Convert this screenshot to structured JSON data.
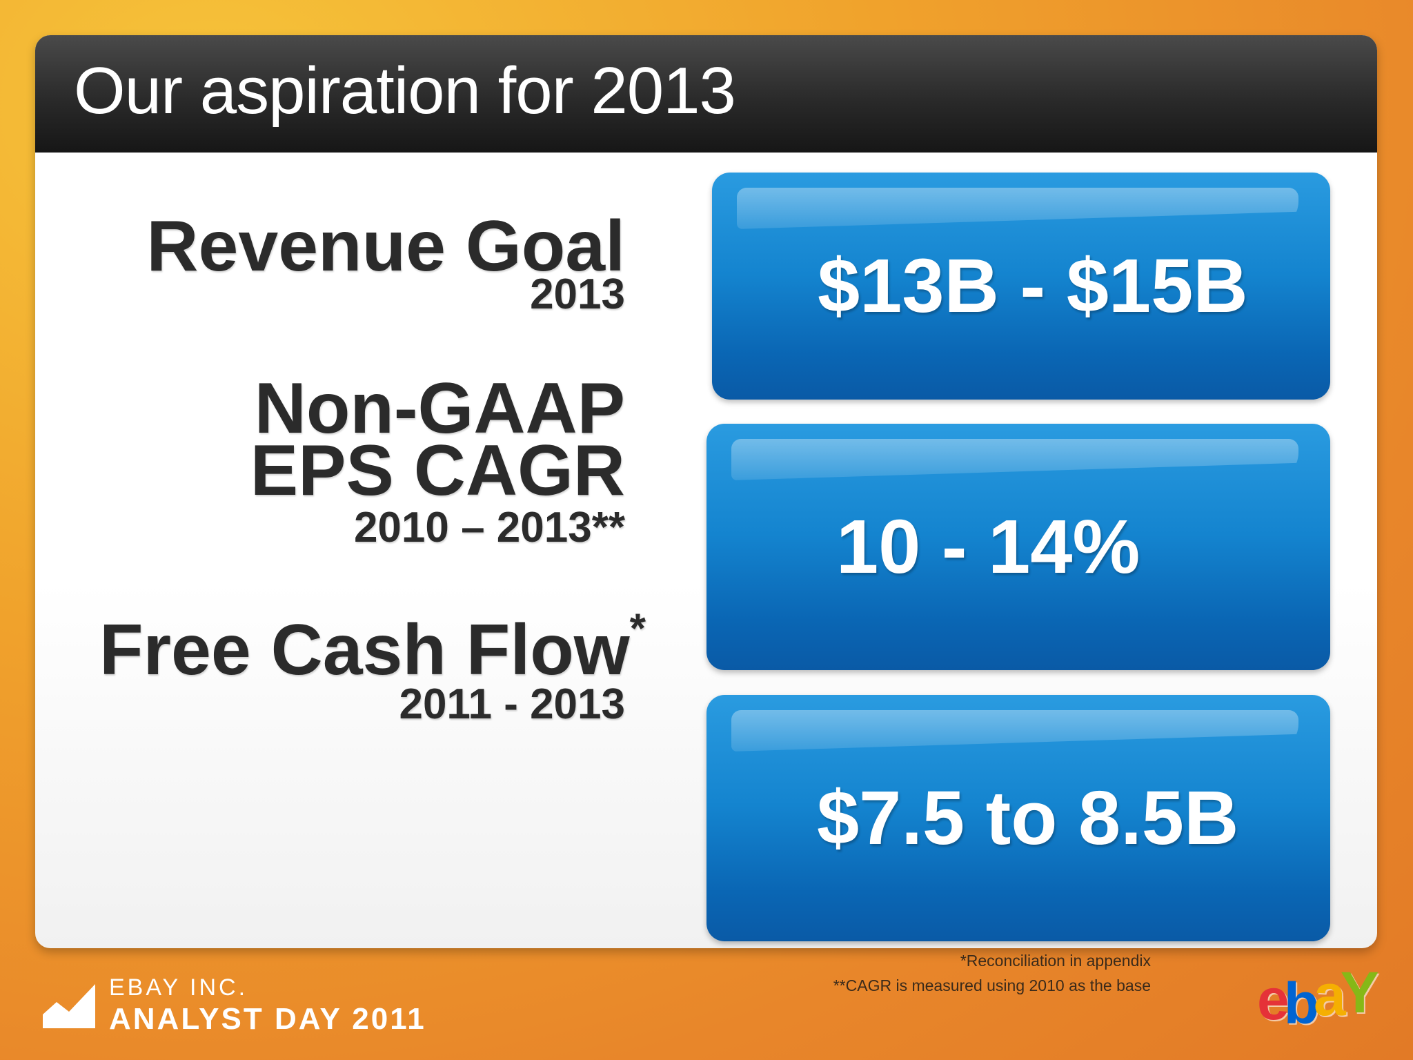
{
  "slide": {
    "title": "Our aspiration for 2013"
  },
  "metrics": [
    {
      "label_lines": [
        "Revenue Goal"
      ],
      "period": "2013",
      "value": "$13B - $15B"
    },
    {
      "label_lines": [
        "Non-GAAP",
        "EPS CAGR"
      ],
      "period": "2010 – 2013**",
      "value": "10 - 14%"
    },
    {
      "label_lines": [
        "Free Cash Flow"
      ],
      "label_suffix": "*",
      "period": "2011 - 2013",
      "value": "$7.5 to 8.5B"
    }
  ],
  "footnotes": [
    "*Reconciliation in appendix",
    "**CAGR is measured using 2010  as the base"
  ],
  "branding": {
    "line1": "EBAY INC.",
    "line2": "ANALYST DAY 2011",
    "logo_letters": [
      "e",
      "b",
      "a",
      "Y"
    ],
    "logo_colors": [
      "#e53238",
      "#0064d2",
      "#f5af02",
      "#86b817"
    ]
  },
  "colors": {
    "title_bar": "#2a2a2a",
    "value_box": "#1484cf",
    "label_text": "#2b2b2b",
    "background": "#f0a22c"
  }
}
